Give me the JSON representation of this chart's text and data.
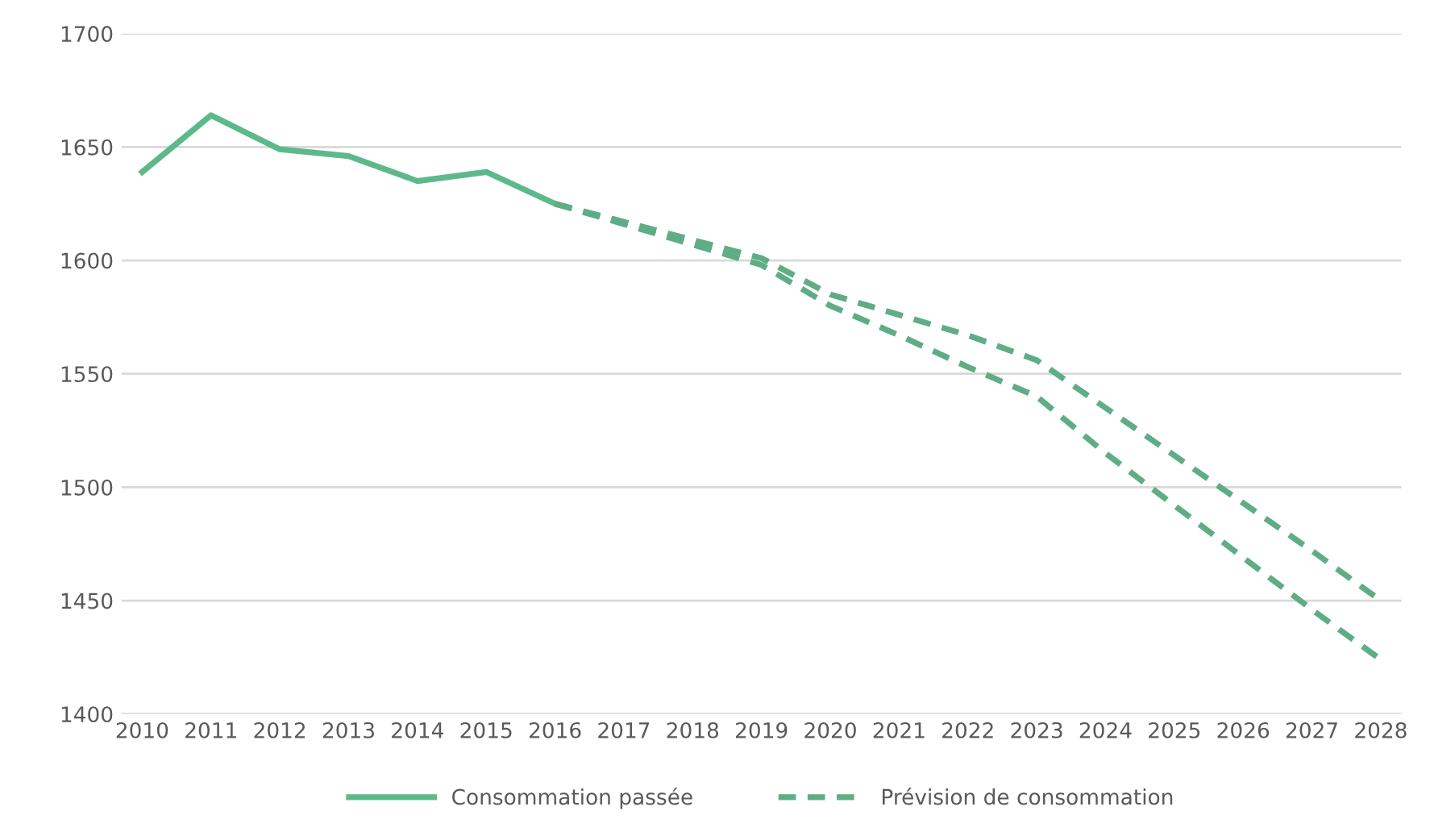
{
  "chart_data": {
    "type": "line",
    "categories": [
      "2010",
      "2011",
      "2012",
      "2013",
      "2014",
      "2015",
      "2016",
      "2017",
      "2018",
      "2019",
      "2020",
      "2021",
      "2022",
      "2023",
      "2024",
      "2025",
      "2026",
      "2027",
      "2028"
    ],
    "series": [
      {
        "name": "Consommation passée",
        "color": "#5db98b",
        "line_style": "solid",
        "values": [
          1639,
          1664,
          1649,
          1646,
          1635,
          1639,
          1625,
          null,
          null,
          null,
          null,
          null,
          null,
          null,
          null,
          null,
          null,
          null,
          null
        ]
      },
      {
        "name": "Prévision de consommation",
        "color": "#5fad87",
        "line_style": "dashed",
        "values": [
          null,
          null,
          null,
          null,
          null,
          null,
          1625,
          1617,
          1609,
          1601,
          1585,
          1576,
          1567,
          1556,
          1535,
          1514,
          1493,
          1472,
          1450
        ]
      },
      {
        "color": "#5fad87",
        "line_style": "dashed",
        "values": [
          null,
          null,
          null,
          null,
          null,
          null,
          1625,
          1616,
          1607,
          1598,
          1580,
          1567,
          1553,
          1540,
          1515,
          1492,
          1469,
          1446,
          1424
        ]
      }
    ],
    "ylim": [
      1400,
      1700
    ],
    "yticks": [
      1400,
      1450,
      1500,
      1550,
      1600,
      1650,
      1700
    ],
    "grid": "y",
    "legend": "bottom"
  }
}
